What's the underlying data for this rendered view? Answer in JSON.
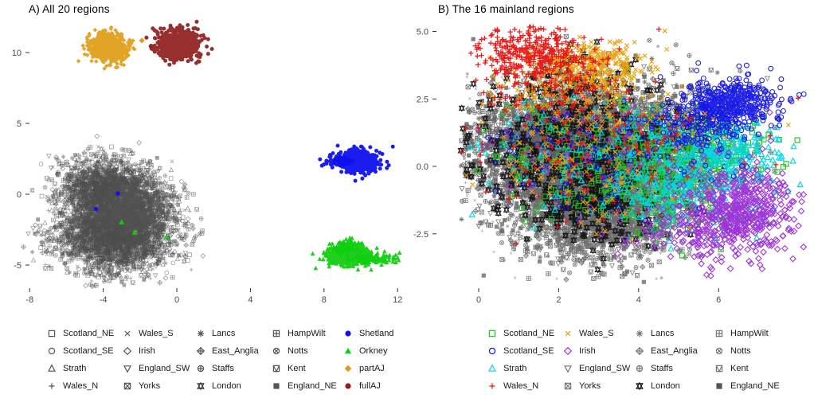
{
  "chart_data": [
    {
      "id": "A",
      "type": "scatter",
      "title": "A) All 20 regions",
      "x_ticks": [
        "-8",
        "-4",
        "0",
        "4",
        "8",
        "12"
      ],
      "x_tick_values": [
        -8,
        -4,
        0,
        4,
        8,
        12
      ],
      "y_ticks": [
        "10",
        "5",
        "0",
        "-5"
      ],
      "y_tick_values": [
        10,
        5,
        0,
        -5
      ],
      "x_range": [
        -8.4,
        12.5
      ],
      "y_range": [
        -6.5,
        12.3
      ],
      "grid": false,
      "legend_position": "bottom",
      "legend": [
        {
          "label": "Scotland_NE",
          "symbol": "square",
          "color": "#555555"
        },
        {
          "label": "Scotland_SE",
          "symbol": "circle",
          "color": "#555555"
        },
        {
          "label": "Strath",
          "symbol": "triangle-up",
          "color": "#555555"
        },
        {
          "label": "Wales_N",
          "symbol": "plus",
          "color": "#555555"
        },
        {
          "label": "Wales_S",
          "symbol": "cross",
          "color": "#555555"
        },
        {
          "label": "Irish",
          "symbol": "diamond",
          "color": "#555555"
        },
        {
          "label": "England_SW",
          "symbol": "triangle-down",
          "color": "#555555"
        },
        {
          "label": "Yorks",
          "symbol": "square-cross",
          "color": "#555555"
        },
        {
          "label": "Lancs",
          "symbol": "asterisk",
          "color": "#555555"
        },
        {
          "label": "East_Anglia",
          "symbol": "diamond-plus",
          "color": "#555555"
        },
        {
          "label": "Staffs",
          "symbol": "circle-plus",
          "color": "#555555"
        },
        {
          "label": "London",
          "symbol": "star-of-david",
          "color": "#333333"
        },
        {
          "label": "HampWilt",
          "symbol": "square-plus",
          "color": "#555555"
        },
        {
          "label": "Notts",
          "symbol": "circle-cross",
          "color": "#555555"
        },
        {
          "label": "Kent",
          "symbol": "square-triangle",
          "color": "#555555"
        },
        {
          "label": "England_NE",
          "symbol": "filled-square",
          "color": "#555555"
        },
        {
          "label": "Shetland",
          "symbol": "filled-circle",
          "color": "#1010EE"
        },
        {
          "label": "Orkney",
          "symbol": "filled-triangle",
          "color": "#10CD10"
        },
        {
          "label": "partAJ",
          "symbol": "filled-diamond",
          "color": "#DE9A10"
        },
        {
          "label": "fullAJ",
          "symbol": "filled-circle",
          "color": "#8E1D1D"
        }
      ],
      "clusters": [
        {
          "name": "mainland-mass-core",
          "symbols": [
            "square",
            "circle",
            "triangle-up",
            "plus",
            "cross",
            "diamond",
            "triangle-down",
            "square-cross",
            "asterisk",
            "diamond-plus",
            "circle-plus",
            "star-of-david",
            "square-plus",
            "circle-cross",
            "square-triangle",
            "filled-square"
          ],
          "color": "#4c4c4c",
          "opacity": 0.55,
          "n": 3000,
          "cx": -3.4,
          "cy": -2.8,
          "sx": 1.5,
          "sy": 1.3,
          "size": 2.4,
          "sw": 0.8
        },
        {
          "name": "mainland-mass-upper",
          "symbols": [
            "square",
            "circle",
            "triangle-up",
            "plus",
            "cross",
            "diamond",
            "triangle-down",
            "square-cross",
            "asterisk",
            "diamond-plus",
            "circle-plus",
            "star-of-david",
            "square-plus",
            "circle-cross",
            "square-triangle",
            "filled-square"
          ],
          "color": "#4c4c4c",
          "opacity": 0.55,
          "n": 1500,
          "cx": -3.9,
          "cy": 0.5,
          "sx": 1.25,
          "sy": 1.05,
          "size": 2.4,
          "sw": 0.8
        },
        {
          "name": "mainland-mass-mid",
          "symbols": [
            "square",
            "circle",
            "triangle-up",
            "plus",
            "cross",
            "diamond",
            "triangle-down",
            "square-cross",
            "asterisk",
            "diamond-plus",
            "circle-plus",
            "star-of-david",
            "square-plus",
            "circle-cross",
            "square-triangle",
            "filled-square"
          ],
          "color": "#525252",
          "opacity": 0.55,
          "n": 800,
          "cx": -2.2,
          "cy": -0.9,
          "sx": 1.1,
          "sy": 0.9,
          "size": 2.4,
          "sw": 0.8
        },
        {
          "name": "partAJ",
          "symbol": "filled-diamond",
          "color": "#DE9A10",
          "opacity": 0.9,
          "n": 750,
          "cx": -3.7,
          "cy": 10.35,
          "sx": 0.5,
          "sy": 0.48,
          "size": 2.3
        },
        {
          "name": "fullAJ",
          "symbol": "filled-circle",
          "color": "#8E1D1D",
          "opacity": 0.92,
          "n": 850,
          "cx": 0.1,
          "cy": 10.6,
          "sx": 0.52,
          "sy": 0.5,
          "size": 2.5
        },
        {
          "name": "shetland-core",
          "symbol": "filled-circle",
          "color": "#1010EE",
          "opacity": 0.95,
          "n": 520,
          "cx": 9.9,
          "cy": 2.3,
          "sx": 0.55,
          "sy": 0.42,
          "size": 2.5
        },
        {
          "name": "shetland-tail",
          "symbol": "filled-circle",
          "color": "#1010EE",
          "opacity": 0.95,
          "n": 80,
          "cx": 8.75,
          "cy": 2.3,
          "sx": 0.38,
          "sy": 0.14,
          "size": 2.5
        },
        {
          "name": "orkney-core",
          "symbol": "filled-triangle",
          "color": "#10CD10",
          "opacity": 0.95,
          "n": 520,
          "cx": 9.4,
          "cy": -4.3,
          "sx": 0.58,
          "sy": 0.36,
          "size": 2.6
        },
        {
          "name": "orkney-tail",
          "symbol": "filled-triangle",
          "color": "#10CD10",
          "opacity": 0.95,
          "n": 110,
          "cx": 10.8,
          "cy": -4.55,
          "sx": 0.55,
          "sy": 0.16,
          "size": 2.6
        },
        {
          "name": "orkney-bump",
          "symbol": "filled-triangle",
          "color": "#10CD10",
          "opacity": 0.95,
          "n": 70,
          "cx": 9.2,
          "cy": -3.7,
          "sx": 0.35,
          "sy": 0.25,
          "size": 2.6
        }
      ],
      "outliers": [
        {
          "x": -1.9,
          "y": 10.85,
          "symbol": "filled-diamond",
          "color": "#DE9A10",
          "size": 3.0
        },
        {
          "x": -1.4,
          "y": 10.45,
          "symbol": "filled-circle",
          "color": "#8E1D1D",
          "size": 3.0
        },
        {
          "x": -3.2,
          "y": 0.05,
          "symbol": "filled-circle",
          "color": "#1010EE",
          "size": 2.8
        },
        {
          "x": -4.4,
          "y": -1.05,
          "symbol": "filled-circle",
          "color": "#1010EE",
          "size": 2.8
        },
        {
          "x": -3.0,
          "y": -1.97,
          "symbol": "filled-triangle",
          "color": "#10CD10",
          "size": 3.1
        },
        {
          "x": -2.3,
          "y": -2.7,
          "symbol": "filled-triangle",
          "color": "#10CD10",
          "size": 3.1
        },
        {
          "x": -0.55,
          "y": -3.0,
          "symbol": "filled-triangle",
          "color": "#10CD10",
          "size": 3.1
        }
      ]
    },
    {
      "id": "B",
      "type": "scatter",
      "title": "B) The 16 mainland regions",
      "x_ticks": [
        "0",
        "2",
        "4",
        "6"
      ],
      "x_tick_values": [
        0,
        2,
        4,
        6
      ],
      "y_ticks": [
        "5.0",
        "2.5",
        "0.0",
        "-2.5"
      ],
      "y_tick_values": [
        5.0,
        2.5,
        0.0,
        -2.5
      ],
      "x_range": [
        -0.45,
        8.25
      ],
      "y_range": [
        -4.3,
        5.25
      ],
      "grid": false,
      "legend_position": "bottom",
      "legend": [
        {
          "label": "Scotland_NE",
          "symbol": "square",
          "color": "#1FC41F"
        },
        {
          "label": "Scotland_SE",
          "symbol": "circle",
          "color": "#1515E8"
        },
        {
          "label": "Strath",
          "symbol": "triangle-up",
          "color": "#00D8E0"
        },
        {
          "label": "Wales_N",
          "symbol": "plus",
          "color": "#E81414"
        },
        {
          "label": "Wales_S",
          "symbol": "cross",
          "color": "#E8A00C"
        },
        {
          "label": "Irish",
          "symbol": "diamond",
          "color": "#9B30D8"
        },
        {
          "label": "England_SW",
          "symbol": "triangle-down",
          "color": "#777777"
        },
        {
          "label": "Yorks",
          "symbol": "square-cross",
          "color": "#777777"
        },
        {
          "label": "Lancs",
          "symbol": "asterisk",
          "color": "#777777"
        },
        {
          "label": "East_Anglia",
          "symbol": "diamond-plus",
          "color": "#777777"
        },
        {
          "label": "Staffs",
          "symbol": "circle-plus",
          "color": "#777777"
        },
        {
          "label": "London",
          "symbol": "star-of-david",
          "color": "#111111"
        },
        {
          "label": "HampWilt",
          "symbol": "square-plus",
          "color": "#777777"
        },
        {
          "label": "Notts",
          "symbol": "circle-cross",
          "color": "#777777"
        },
        {
          "label": "Kent",
          "symbol": "square-triangle",
          "color": "#777777"
        },
        {
          "label": "England_NE",
          "symbol": "filled-square",
          "color": "#555555"
        }
      ],
      "clusters": [
        {
          "name": "grey-texture",
          "symbols": [
            "plus",
            "cross",
            "asterisk"
          ],
          "color": "#8e8e8e",
          "opacity": 0.7,
          "n": 1200,
          "cx": 2.6,
          "cy": 0.4,
          "sx": 1.6,
          "sy": 1.35,
          "size": 1.9,
          "sw": 0.8
        },
        {
          "name": "grey-core",
          "symbols": [
            "triangle-down",
            "square-cross",
            "diamond-plus",
            "circle-plus",
            "square-plus",
            "circle-cross",
            "square-triangle",
            "filled-square",
            "asterisk"
          ],
          "color": "#5f5f5f",
          "opacity": 0.8,
          "n": 3800,
          "cx": 2.7,
          "cy": 0.7,
          "sx": 1.5,
          "sy": 1.2,
          "size": 2.6,
          "sw": 0.9
        },
        {
          "name": "grey-lower",
          "symbols": [
            "triangle-down",
            "square-cross",
            "diamond-plus",
            "circle-plus",
            "square-plus",
            "circle-cross",
            "square-triangle",
            "filled-square"
          ],
          "color": "#6b6b6b",
          "opacity": 0.8,
          "n": 1700,
          "cx": 2.9,
          "cy": -1.7,
          "sx": 1.05,
          "sy": 0.95,
          "size": 2.6,
          "sw": 0.9
        },
        {
          "name": "london-core",
          "symbol": "star-of-david",
          "color": "#0d0d0d",
          "opacity": 0.9,
          "n": 480,
          "cx": 2.5,
          "cy": 0.6,
          "sx": 1.4,
          "sy": 1.1,
          "size": 3.1,
          "sw": 1.1
        },
        {
          "name": "london-lower",
          "symbol": "star-of-david",
          "color": "#0d0d0d",
          "opacity": 0.9,
          "n": 200,
          "cx": 3.0,
          "cy": -1.5,
          "sx": 0.95,
          "sy": 0.8,
          "size": 3.1,
          "sw": 1.1
        },
        {
          "name": "london-top",
          "symbol": "star-of-david",
          "color": "#0d0d0d",
          "opacity": 0.9,
          "n": 60,
          "cx": 2.4,
          "cy": 3.2,
          "sx": 0.9,
          "sy": 0.5,
          "size": 3.1,
          "sw": 1.1
        },
        {
          "name": "scotland-ne-scatter",
          "symbol": "square",
          "color": "#1FC41F",
          "opacity": 0.95,
          "n": 160,
          "cx": 2.8,
          "cy": 0.3,
          "sx": 1.6,
          "sy": 1.2,
          "size": 3.0,
          "sw": 1.2
        },
        {
          "name": "scotland-ne-core",
          "symbol": "square",
          "color": "#1FC41F",
          "opacity": 0.95,
          "n": 300,
          "cx": 4.75,
          "cy": -0.5,
          "sx": 0.95,
          "sy": 0.9,
          "size": 3.0,
          "sw": 1.2
        },
        {
          "name": "scotland-ne-right",
          "symbol": "square",
          "color": "#1FC41F",
          "opacity": 0.95,
          "n": 110,
          "cx": 5.9,
          "cy": 0.9,
          "sx": 0.7,
          "sy": 0.6,
          "size": 3.0,
          "sw": 1.2
        },
        {
          "name": "strath-scatter",
          "symbol": "triangle-up",
          "color": "#00D8E0",
          "opacity": 0.95,
          "n": 150,
          "cx": 3.0,
          "cy": 0.3,
          "sx": 1.6,
          "sy": 1.2,
          "size": 3.0,
          "sw": 1.2
        },
        {
          "name": "strath-core",
          "symbol": "triangle-up",
          "color": "#00D8E0",
          "opacity": 0.95,
          "n": 300,
          "cx": 5.25,
          "cy": -0.4,
          "sx": 0.95,
          "sy": 0.95,
          "size": 3.0,
          "sw": 1.2
        },
        {
          "name": "strath-right",
          "symbol": "triangle-up",
          "color": "#00D8E0",
          "opacity": 0.95,
          "n": 130,
          "cx": 6.3,
          "cy": 0.6,
          "sx": 0.6,
          "sy": 0.6,
          "size": 3.0,
          "sw": 1.2
        },
        {
          "name": "irish-scatter",
          "symbol": "diamond",
          "color": "#9B30D8",
          "opacity": 0.95,
          "n": 100,
          "cx": 3.5,
          "cy": 0.0,
          "sx": 1.6,
          "sy": 1.1,
          "size": 3.0,
          "sw": 1.1
        },
        {
          "name": "irish-tail",
          "symbol": "diamond",
          "color": "#9B30D8",
          "opacity": 0.95,
          "n": 150,
          "cx": 5.6,
          "cy": -2.4,
          "sx": 0.85,
          "sy": 0.5,
          "size": 3.0,
          "sw": 1.1
        },
        {
          "name": "irish-core",
          "symbol": "diamond",
          "color": "#9B30D8",
          "opacity": 0.95,
          "n": 470,
          "cx": 6.6,
          "cy": -1.55,
          "sx": 0.68,
          "sy": 0.78,
          "size": 3.0,
          "sw": 1.1
        },
        {
          "name": "scotland-se-scatter",
          "symbol": "circle",
          "color": "#1515E8",
          "opacity": 0.95,
          "n": 120,
          "cx": 3.3,
          "cy": 0.6,
          "sx": 1.6,
          "sy": 1.1,
          "size": 2.9,
          "sw": 1.1
        },
        {
          "name": "scotland-se-tail",
          "symbol": "circle",
          "color": "#1515E8",
          "opacity": 0.95,
          "n": 150,
          "cx": 5.5,
          "cy": 1.6,
          "sx": 0.7,
          "sy": 0.55,
          "size": 2.9,
          "sw": 1.1
        },
        {
          "name": "scotland-se-core",
          "symbol": "circle",
          "color": "#1515E8",
          "opacity": 0.95,
          "n": 430,
          "cx": 6.35,
          "cy": 2.35,
          "sx": 0.58,
          "sy": 0.45,
          "size": 2.9,
          "sw": 1.1
        },
        {
          "name": "wales-s-scatter",
          "symbol": "cross",
          "color": "#E8A00C",
          "opacity": 0.95,
          "n": 150,
          "cx": 2.9,
          "cy": 0.3,
          "sx": 1.6,
          "sy": 1.2,
          "size": 3.0,
          "sw": 1.2
        },
        {
          "name": "wales-s-mid",
          "symbol": "cross",
          "color": "#E8A00C",
          "opacity": 0.95,
          "n": 130,
          "cx": 2.3,
          "cy": 2.7,
          "sx": 1.2,
          "sy": 0.6,
          "size": 3.0,
          "sw": 1.2
        },
        {
          "name": "wales-s-core",
          "symbol": "cross",
          "color": "#E8A00C",
          "opacity": 0.95,
          "n": 340,
          "cx": 2.75,
          "cy": 3.65,
          "sx": 0.75,
          "sy": 0.5,
          "size": 3.0,
          "sw": 1.2
        },
        {
          "name": "wales-n-scatter",
          "symbol": "plus",
          "color": "#E81414",
          "opacity": 0.95,
          "n": 130,
          "cx": 2.8,
          "cy": 0.6,
          "sx": 1.6,
          "sy": 1.2,
          "size": 3.2,
          "sw": 1.3
        },
        {
          "name": "wales-n-mid",
          "symbol": "plus",
          "color": "#E81414",
          "opacity": 0.95,
          "n": 130,
          "cx": 1.9,
          "cy": 2.9,
          "sx": 1.0,
          "sy": 0.7,
          "size": 3.2,
          "sw": 1.3
        },
        {
          "name": "wales-n-core",
          "symbol": "plus",
          "color": "#E81414",
          "opacity": 0.95,
          "n": 330,
          "cx": 1.35,
          "cy": 4.2,
          "sx": 0.62,
          "sy": 0.48,
          "size": 3.2,
          "sw": 1.3
        }
      ],
      "outliers": []
    }
  ]
}
